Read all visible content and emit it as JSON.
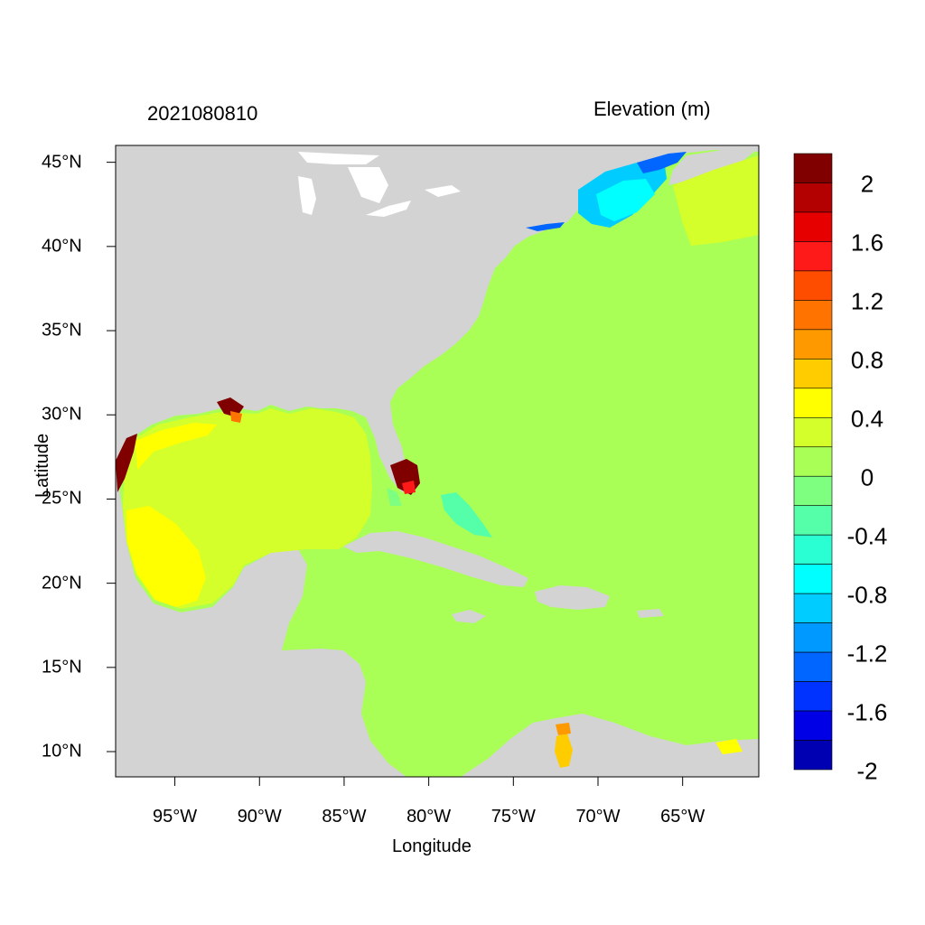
{
  "map": {
    "date": "2021080810",
    "variable": "Elevation (m)",
    "x_title": "Longitude",
    "y_title": "Latitude",
    "lon_range": [
      -98.5,
      -60.5
    ],
    "lat_range": [
      8.5,
      46
    ],
    "lon_ticks": [
      {
        "value": -95,
        "label": "95°W"
      },
      {
        "value": -90,
        "label": "90°W"
      },
      {
        "value": -85,
        "label": "85°W"
      },
      {
        "value": -80,
        "label": "80°W"
      },
      {
        "value": -75,
        "label": "75°W"
      },
      {
        "value": -70,
        "label": "70°W"
      },
      {
        "value": -65,
        "label": "65°W"
      }
    ],
    "lat_ticks": [
      {
        "value": 45,
        "label": "45°N"
      },
      {
        "value": 40,
        "label": "40°N"
      },
      {
        "value": 35,
        "label": "35°N"
      },
      {
        "value": 30,
        "label": "30°N"
      },
      {
        "value": 25,
        "label": "25°N"
      },
      {
        "value": 20,
        "label": "20°N"
      },
      {
        "value": 15,
        "label": "15°N"
      },
      {
        "value": 10,
        "label": "10°N"
      }
    ],
    "colors": {
      "land": "#d3d3d3",
      "ocean_default": "#a9ff55",
      "gulf": "#d4ff2a",
      "western_gulf": "#ffff00"
    }
  },
  "colorbar": {
    "colors": [
      "#800000",
      "#b30000",
      "#e60000",
      "#ff1a1a",
      "#ff4d00",
      "#ff7300",
      "#ff9900",
      "#ffcc00",
      "#ffff00",
      "#d4ff2a",
      "#a9ff55",
      "#7fff80",
      "#55ffaa",
      "#2affd4",
      "#00ffff",
      "#00ccff",
      "#0099ff",
      "#0066ff",
      "#0033ff",
      "#0000e6",
      "#0000b3"
    ],
    "labels": [
      {
        "value": 2,
        "label": "2"
      },
      {
        "value": 1.6,
        "label": "1.6"
      },
      {
        "value": 1.2,
        "label": "1.2"
      },
      {
        "value": 0.8,
        "label": "0.8"
      },
      {
        "value": 0.4,
        "label": "0.4"
      },
      {
        "value": 0,
        "label": "0"
      },
      {
        "value": -0.4,
        "label": "-0.4"
      },
      {
        "value": -0.8,
        "label": "-0.8"
      },
      {
        "value": -1.2,
        "label": "-1.2"
      },
      {
        "value": -1.6,
        "label": "-1.6"
      },
      {
        "value": -2,
        "label": "-2"
      }
    ],
    "levels": [
      2.2,
      2.0,
      1.8,
      1.6,
      1.4,
      1.2,
      1.0,
      0.8,
      0.6,
      0.4,
      0.2,
      0.0,
      -0.2,
      -0.4,
      -0.6,
      -0.8,
      -1.0,
      -1.2,
      -1.4,
      -1.6,
      -1.8,
      -2.0
    ]
  }
}
